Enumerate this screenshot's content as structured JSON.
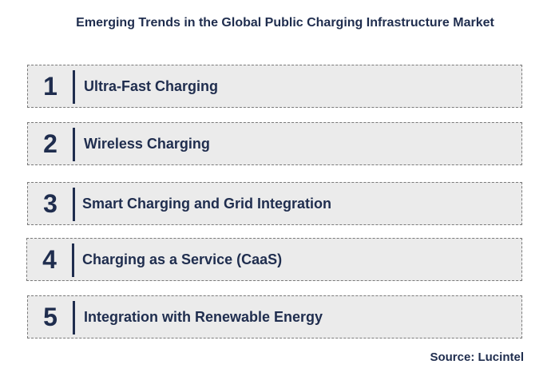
{
  "title": "Emerging Trends in the Global Public Charging Infrastructure Market",
  "trends": [
    {
      "number": "1",
      "label": "Ultra-Fast Charging"
    },
    {
      "number": "2",
      "label": "Wireless Charging"
    },
    {
      "number": "3",
      "label": "Smart Charging and Grid Integration"
    },
    {
      "number": "4",
      "label": "Charging as a Service (CaaS)"
    },
    {
      "number": "5",
      "label": "Integration with Renewable Energy"
    }
  ],
  "source": "Source: Lucintel",
  "colors": {
    "text": "#1f2d4e",
    "row_background": "#ebebeb",
    "row_border": "#7a7a7a"
  }
}
